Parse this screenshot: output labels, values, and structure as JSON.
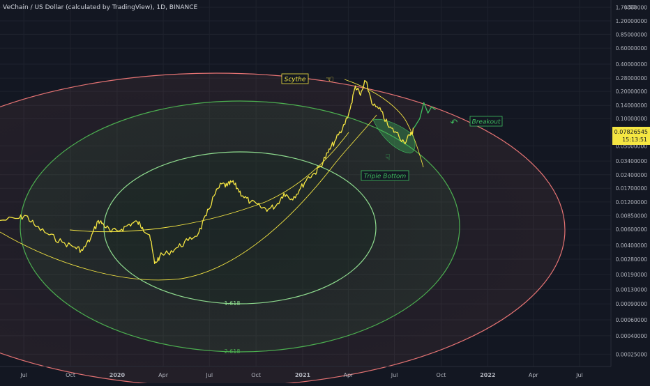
{
  "header": {
    "title": "VeChain / US Dollar (calculated by TradingView), 1D, BINANCE"
  },
  "price_axis": {
    "unit": "USD",
    "ticks": [
      "1.70000000",
      "1.20000000",
      "0.85000000",
      "0.60000000",
      "0.40000000",
      "0.28000000",
      "0.20000000",
      "0.14000000",
      "0.10000000",
      "0.05000000",
      "0.03400000",
      "0.02400000",
      "0.01700000",
      "0.01200000",
      "0.00850000",
      "0.00600000",
      "0.00400000",
      "0.00280000",
      "0.00190000",
      "0.00130000",
      "0.00090000",
      "0.00060000",
      "0.00040000",
      "0.00025000"
    ],
    "current_price": "0.07826545",
    "countdown": "15:13:51"
  },
  "time_axis": {
    "labels": [
      "Jul",
      "Oct",
      "2020",
      "Apr",
      "Jul",
      "Oct",
      "2021",
      "Apr",
      "Jul",
      "Oct",
      "2022",
      "Apr",
      "Jul"
    ]
  },
  "annotations": {
    "scythe": "Scythe",
    "breakout": "Breakout",
    "triple_bottom": "Triple Bottom",
    "fib_inner": "1.618",
    "fib_outer": "2.618"
  },
  "colors": {
    "background": "#131722",
    "price_line": "#f5e642",
    "projection": "#3fbf5f",
    "fib_inner": "#8fdc8f",
    "fib_middle": "#4caf50",
    "fib_outer": "#e57373",
    "current_price_badge": "#f5e642"
  },
  "icons": [
    "hand-pointing-left-icon",
    "hand-pointing-down-icon",
    "curved-arrow-left-icon"
  ],
  "chart_data": {
    "type": "line",
    "scale": "log",
    "ylim": [
      0.0002,
      1.9
    ],
    "x_range": [
      "2019-05-15",
      "2022-09-01"
    ],
    "series": [
      {
        "name": "",
        "points": [
          [
            "2019-05-15",
            0.0075
          ],
          [
            "2019-06-20",
            0.0079
          ],
          [
            "2019-07-05",
            0.0085
          ],
          [
            "2019-07-25",
            0.0064
          ],
          [
            "2019-08-20",
            0.0052
          ],
          [
            "2019-09-15",
            0.0043
          ],
          [
            "2019-10-10",
            0.0038
          ],
          [
            "2019-10-25",
            0.0035
          ],
          [
            "2019-11-10",
            0.0048
          ],
          [
            "2019-11-25",
            0.0075
          ],
          [
            "2019-12-05",
            0.0068
          ],
          [
            "2019-12-20",
            0.0056
          ],
          [
            "2020-01-10",
            0.006
          ],
          [
            "2020-01-25",
            0.0068
          ],
          [
            "2020-02-10",
            0.0072
          ],
          [
            "2020-02-20",
            0.0063
          ],
          [
            "2020-03-05",
            0.0052
          ],
          [
            "2020-03-15",
            0.0025
          ],
          [
            "2020-03-25",
            0.003
          ],
          [
            "2020-04-10",
            0.0033
          ],
          [
            "2020-04-30",
            0.0038
          ],
          [
            "2020-05-20",
            0.0045
          ],
          [
            "2020-06-10",
            0.0055
          ],
          [
            "2020-06-25",
            0.0085
          ],
          [
            "2020-07-10",
            0.014
          ],
          [
            "2020-07-25",
            0.019
          ],
          [
            "2020-08-05",
            0.018
          ],
          [
            "2020-08-15",
            0.02
          ],
          [
            "2020-08-25",
            0.017
          ],
          [
            "2020-09-05",
            0.014
          ],
          [
            "2020-09-20",
            0.012
          ],
          [
            "2020-10-10",
            0.0105
          ],
          [
            "2020-10-25",
            0.01
          ],
          [
            "2020-11-10",
            0.011
          ],
          [
            "2020-11-25",
            0.015
          ],
          [
            "2020-12-10",
            0.013
          ],
          [
            "2020-12-25",
            0.016
          ],
          [
            "2021-01-10",
            0.022
          ],
          [
            "2021-01-25",
            0.025
          ],
          [
            "2021-02-05",
            0.03
          ],
          [
            "2021-02-20",
            0.042
          ],
          [
            "2021-03-05",
            0.056
          ],
          [
            "2021-03-20",
            0.075
          ],
          [
            "2021-04-05",
            0.13
          ],
          [
            "2021-04-15",
            0.23
          ],
          [
            "2021-04-25",
            0.18
          ],
          [
            "2021-05-05",
            0.26
          ],
          [
            "2021-05-20",
            0.14
          ],
          [
            "2021-06-05",
            0.12
          ],
          [
            "2021-06-20",
            0.08
          ],
          [
            "2021-07-05",
            0.07
          ],
          [
            "2021-07-20",
            0.055
          ],
          [
            "2021-08-01",
            0.065
          ],
          [
            "2021-08-08",
            0.0782
          ]
        ]
      },
      {
        "name": "",
        "points": [
          [
            "2021-08-08",
            0.0782
          ],
          [
            "2021-08-20",
            0.1
          ],
          [
            "2021-08-28",
            0.15
          ],
          [
            "2021-09-05",
            0.115
          ],
          [
            "2021-09-12",
            0.135
          ],
          [
            "2021-09-20",
            0.125
          ]
        ]
      }
    ]
  }
}
